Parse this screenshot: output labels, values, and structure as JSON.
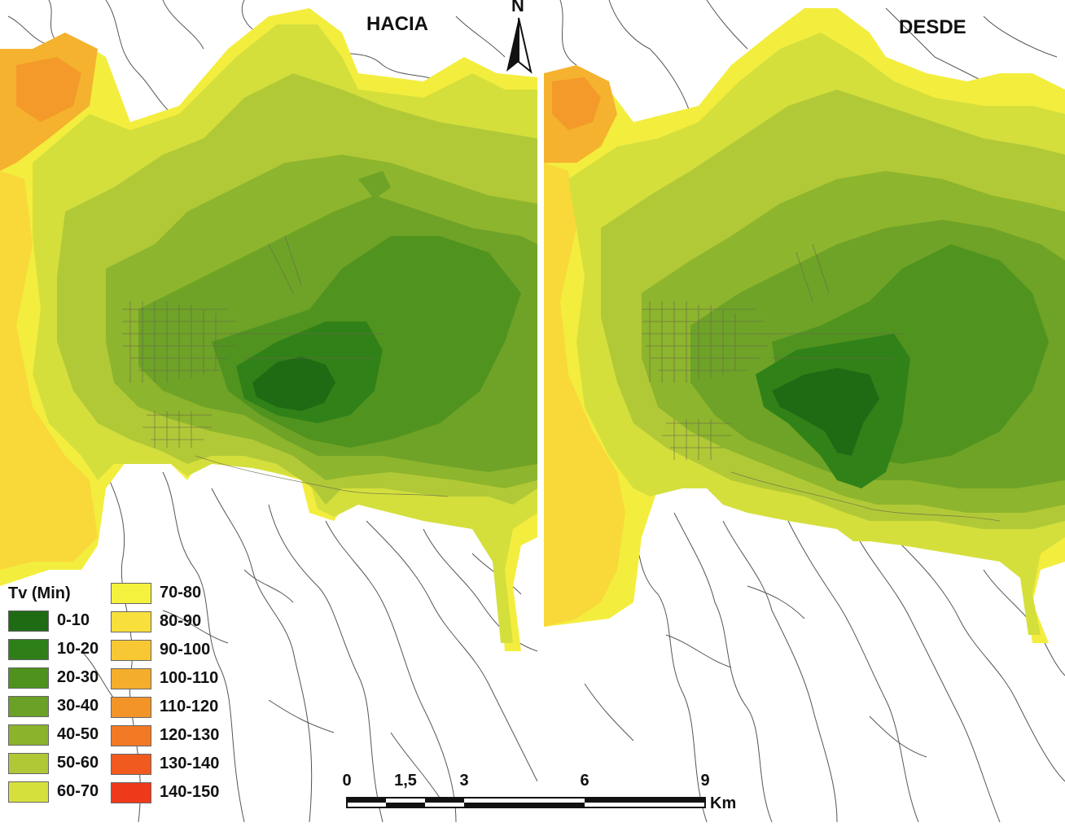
{
  "maps": [
    {
      "title": "HACIA"
    },
    {
      "title": "DESDE"
    }
  ],
  "north_arrow": {
    "label": "N",
    "icon": "north-arrow-icon"
  },
  "legend": {
    "title": "Tv (Min)",
    "items": [
      {
        "label": "0-10",
        "color": "#1e6b14"
      },
      {
        "label": "10-20",
        "color": "#2f7f18"
      },
      {
        "label": "20-30",
        "color": "#4f921e"
      },
      {
        "label": "30-40",
        "color": "#6ba126"
      },
      {
        "label": "40-50",
        "color": "#8bb42c"
      },
      {
        "label": "50-60",
        "color": "#b0c836"
      },
      {
        "label": "60-70",
        "color": "#d6e03c"
      },
      {
        "label": "70-80",
        "color": "#f5f23e"
      },
      {
        "label": "80-90",
        "color": "#f9df3b"
      },
      {
        "label": "90-100",
        "color": "#f8c834"
      },
      {
        "label": "100-110",
        "color": "#f5ad2c"
      },
      {
        "label": "110-120",
        "color": "#f39428"
      },
      {
        "label": "120-130",
        "color": "#f27a24"
      },
      {
        "label": "130-140",
        "color": "#f05a1f"
      },
      {
        "label": "140-150",
        "color": "#ee3a1a"
      }
    ]
  },
  "scale_bar": {
    "ticks": [
      "0",
      "1,5",
      "3",
      "6",
      "9"
    ],
    "unit": "Km"
  }
}
